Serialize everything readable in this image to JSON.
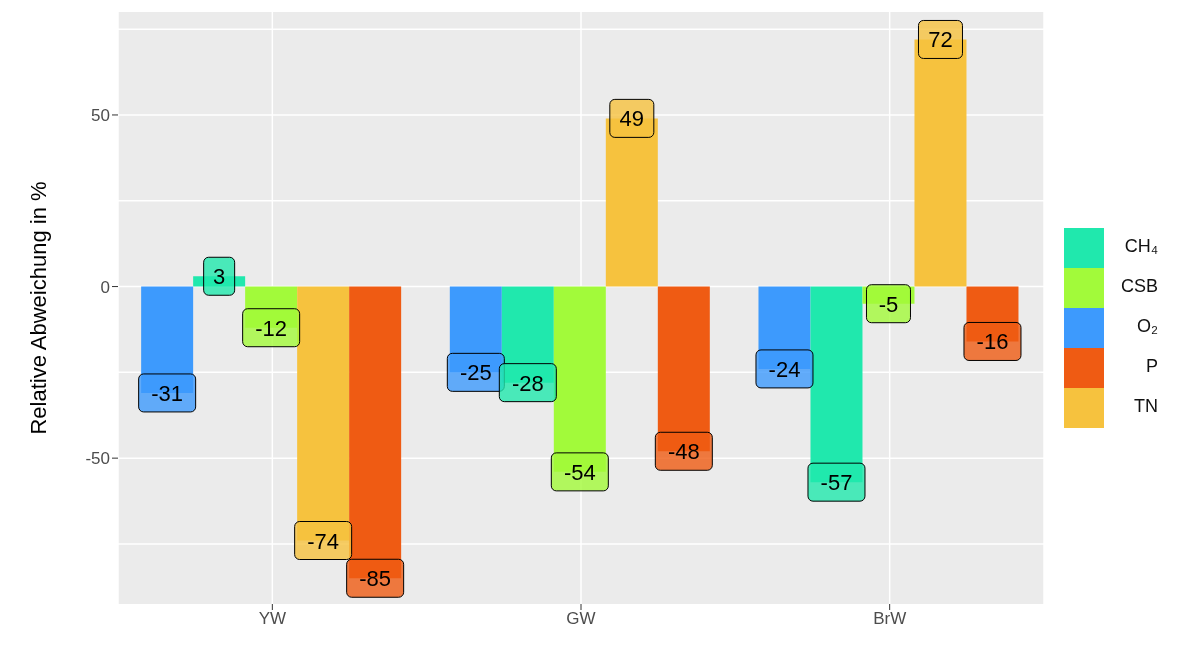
{
  "chart_data": {
    "type": "bar",
    "ylabel": "Relative Abweichung in %",
    "categories": [
      "YW",
      "GW",
      "BrW"
    ],
    "series": [
      {
        "name": "O₂",
        "color": "#3d9afd",
        "values": [
          -31,
          -25,
          -24
        ]
      },
      {
        "name": "CH₄",
        "color": "#20e8ad",
        "values": [
          3,
          -28,
          -57
        ]
      },
      {
        "name": "CSB",
        "color": "#a2fa3a",
        "values": [
          -12,
          -54,
          -5
        ]
      },
      {
        "name": "TN",
        "color": "#f6c23e",
        "values": [
          -74,
          49,
          72
        ]
      },
      {
        "name": "P",
        "color": "#ef5b13",
        "values": [
          -85,
          -48,
          -16
        ]
      }
    ],
    "ylim": [
      -92.5,
      80
    ],
    "yticks": [
      -50,
      0,
      50
    ],
    "grid": true,
    "legend": "right",
    "data_labels": true
  }
}
